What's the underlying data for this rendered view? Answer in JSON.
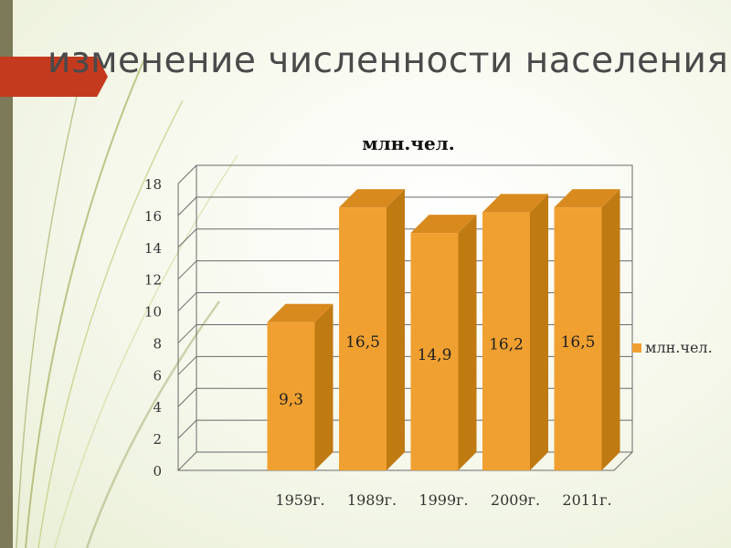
{
  "slide": {
    "title": "изменение численности населения",
    "accent_color": "#c43a1e"
  },
  "chart_data": {
    "type": "bar",
    "title": "млн.чел.",
    "categories": [
      "1959г.",
      "1989г.",
      "1999г.",
      "2009г.",
      "2011г."
    ],
    "series": [
      {
        "name": "млн.чел.",
        "values": [
          9.3,
          16.5,
          14.9,
          16.2,
          16.5
        ],
        "data_labels": [
          "9,3",
          "16,5",
          "14,9",
          "16,2",
          "16,5"
        ],
        "color": "#f0a030"
      }
    ],
    "ylim": [
      0,
      18
    ],
    "yticks": [
      "0",
      "2",
      "4",
      "6",
      "8",
      "10",
      "12",
      "14",
      "16",
      "18"
    ],
    "grid": true,
    "legend": "right",
    "style": "3d-bar"
  }
}
